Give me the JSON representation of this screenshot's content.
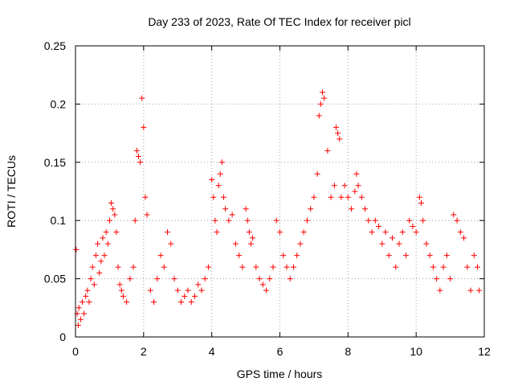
{
  "chart_data": {
    "type": "scatter",
    "title": "Day 233 of 2023, Rate Of TEC Index for receiver picl",
    "xlabel": "GPS time / hours",
    "ylabel": "ROTI / TECUs",
    "xlim": [
      0,
      12
    ],
    "ylim": [
      0,
      0.25
    ],
    "x_ticks": [
      0,
      2,
      4,
      6,
      8,
      10,
      12
    ],
    "x_tick_labels": [
      "0",
      "2",
      "4",
      "6",
      "8",
      "10",
      "12"
    ],
    "y_ticks": [
      0,
      0.05,
      0.1,
      0.15,
      0.2,
      0.25
    ],
    "y_tick_labels": [
      "0",
      "0.05",
      "0.1",
      "0.15",
      "0.2",
      "0.25"
    ],
    "grid": true,
    "marker": "+",
    "color": "#ff0000",
    "series": [
      {
        "name": "ROTI",
        "x": [
          0.02,
          0.05,
          0.08,
          0.1,
          0.15,
          0.2,
          0.25,
          0.3,
          0.35,
          0.4,
          0.45,
          0.5,
          0.55,
          0.6,
          0.65,
          0.7,
          0.75,
          0.8,
          0.85,
          0.9,
          0.95,
          1.0,
          1.05,
          1.1,
          1.15,
          1.2,
          1.25,
          1.3,
          1.35,
          1.4,
          1.5,
          1.6,
          1.7,
          1.75,
          1.8,
          1.85,
          1.9,
          1.95,
          2.0,
          2.05,
          2.1,
          2.2,
          2.3,
          2.4,
          2.5,
          2.6,
          2.7,
          2.8,
          2.9,
          3.0,
          3.1,
          3.2,
          3.3,
          3.4,
          3.5,
          3.6,
          3.7,
          3.8,
          3.9,
          4.0,
          4.05,
          4.1,
          4.15,
          4.2,
          4.25,
          4.3,
          4.35,
          4.4,
          4.5,
          4.6,
          4.7,
          4.8,
          4.9,
          5.0,
          5.05,
          5.1,
          5.15,
          5.2,
          5.3,
          5.4,
          5.5,
          5.6,
          5.7,
          5.8,
          5.9,
          6.0,
          6.1,
          6.2,
          6.3,
          6.4,
          6.5,
          6.6,
          6.7,
          6.8,
          6.9,
          7.0,
          7.1,
          7.15,
          7.2,
          7.25,
          7.3,
          7.4,
          7.5,
          7.6,
          7.65,
          7.7,
          7.75,
          7.8,
          7.9,
          8.0,
          8.1,
          8.2,
          8.25,
          8.3,
          8.4,
          8.5,
          8.6,
          8.7,
          8.8,
          8.9,
          9.0,
          9.1,
          9.2,
          9.3,
          9.4,
          9.5,
          9.6,
          9.7,
          9.8,
          9.9,
          10.0,
          10.1,
          10.15,
          10.2,
          10.3,
          10.4,
          10.5,
          10.6,
          10.7,
          10.8,
          10.9,
          11.0,
          11.1,
          11.2,
          11.3,
          11.4,
          11.5,
          11.6,
          11.7,
          11.8,
          11.85
        ],
        "y": [
          0.075,
          0.02,
          0.01,
          0.025,
          0.015,
          0.03,
          0.02,
          0.035,
          0.04,
          0.03,
          0.05,
          0.06,
          0.045,
          0.07,
          0.08,
          0.055,
          0.065,
          0.085,
          0.07,
          0.09,
          0.08,
          0.1,
          0.115,
          0.11,
          0.105,
          0.09,
          0.06,
          0.045,
          0.04,
          0.035,
          0.03,
          0.05,
          0.06,
          0.1,
          0.16,
          0.155,
          0.15,
          0.205,
          0.18,
          0.12,
          0.105,
          0.04,
          0.03,
          0.05,
          0.07,
          0.06,
          0.09,
          0.08,
          0.05,
          0.04,
          0.03,
          0.035,
          0.04,
          0.03,
          0.035,
          0.045,
          0.04,
          0.05,
          0.06,
          0.135,
          0.12,
          0.1,
          0.09,
          0.13,
          0.14,
          0.15,
          0.12,
          0.11,
          0.1,
          0.105,
          0.08,
          0.07,
          0.06,
          0.11,
          0.1,
          0.09,
          0.08,
          0.085,
          0.06,
          0.05,
          0.045,
          0.04,
          0.05,
          0.06,
          0.1,
          0.09,
          0.07,
          0.06,
          0.05,
          0.06,
          0.07,
          0.08,
          0.09,
          0.1,
          0.11,
          0.12,
          0.14,
          0.19,
          0.2,
          0.21,
          0.205,
          0.16,
          0.12,
          0.13,
          0.18,
          0.175,
          0.17,
          0.12,
          0.13,
          0.12,
          0.11,
          0.125,
          0.14,
          0.13,
          0.12,
          0.11,
          0.1,
          0.09,
          0.1,
          0.095,
          0.08,
          0.09,
          0.07,
          0.085,
          0.06,
          0.08,
          0.09,
          0.07,
          0.1,
          0.095,
          0.09,
          0.12,
          0.115,
          0.1,
          0.08,
          0.07,
          0.06,
          0.05,
          0.04,
          0.06,
          0.07,
          0.05,
          0.105,
          0.1,
          0.09,
          0.085,
          0.06,
          0.04,
          0.07,
          0.06,
          0.04
        ]
      }
    ]
  }
}
